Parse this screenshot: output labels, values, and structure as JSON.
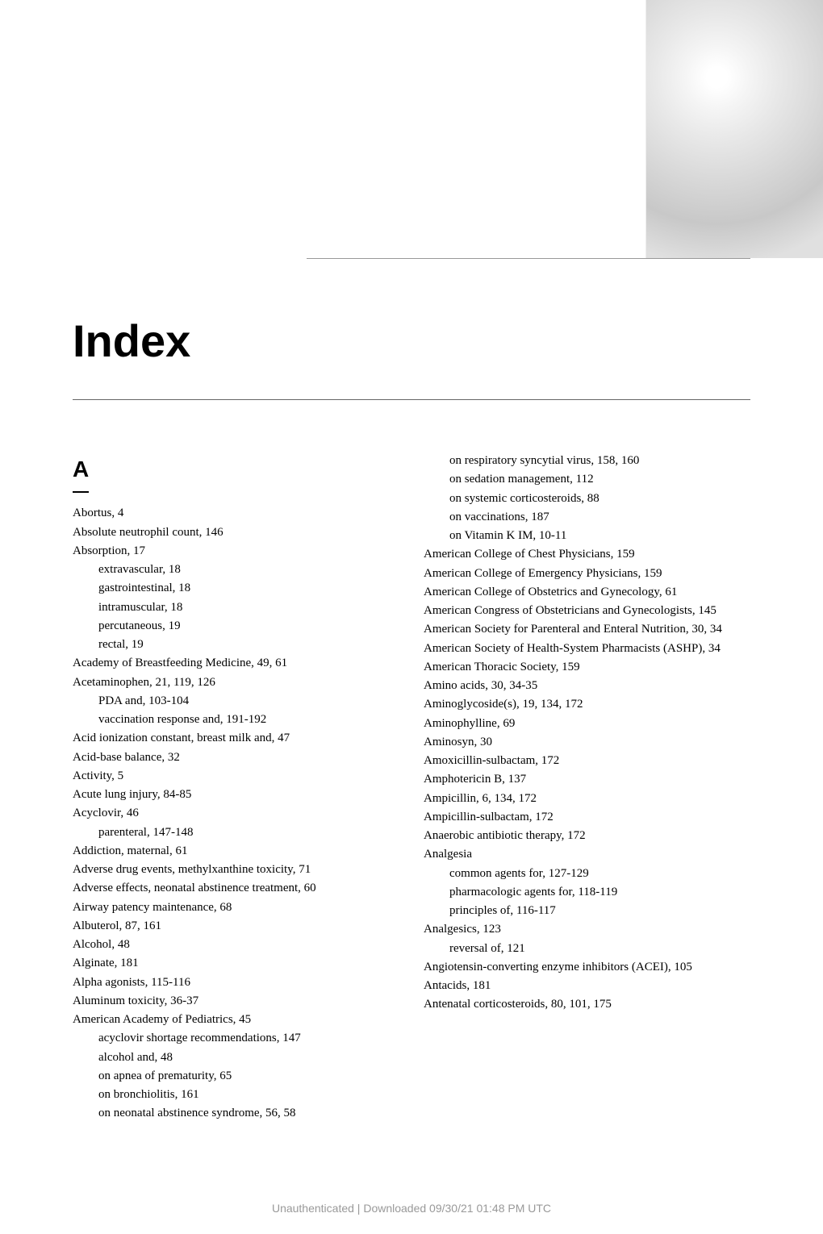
{
  "title": "Index",
  "section_letter": "A",
  "colors": {
    "text": "#000000",
    "rule": "#666666",
    "footer": "#999999",
    "background": "#ffffff"
  },
  "typography": {
    "title_font": "Arial",
    "title_size_pt": 42,
    "title_weight": 700,
    "body_font": "Georgia",
    "body_size_pt": 11,
    "letter_size_pt": 21
  },
  "columns": {
    "left": [
      {
        "t": "Abortus, 4",
        "i": 0
      },
      {
        "t": "Absolute neutrophil count, 146",
        "i": 0
      },
      {
        "t": "Absorption, 17",
        "i": 0
      },
      {
        "t": "extravascular, 18",
        "i": 1
      },
      {
        "t": "gastrointestinal, 18",
        "i": 1
      },
      {
        "t": "intramuscular, 18",
        "i": 1
      },
      {
        "t": "percutaneous, 19",
        "i": 1
      },
      {
        "t": "rectal, 19",
        "i": 1
      },
      {
        "t": "Academy of Breastfeeding Medicine, 49, 61",
        "i": 0
      },
      {
        "t": "Acetaminophen, 21, 119, 126",
        "i": 0
      },
      {
        "t": "PDA and, 103-104",
        "i": 1
      },
      {
        "t": "vaccination response and, 191-192",
        "i": 1
      },
      {
        "t": "Acid ionization constant, breast milk and, 47",
        "i": 0
      },
      {
        "t": "Acid-base balance, 32",
        "i": 0
      },
      {
        "t": "Activity, 5",
        "i": 0
      },
      {
        "t": "Acute lung injury, 84-85",
        "i": 0
      },
      {
        "t": "Acyclovir, 46",
        "i": 0
      },
      {
        "t": "parenteral, 147-148",
        "i": 1
      },
      {
        "t": "Addiction, maternal, 61",
        "i": 0
      },
      {
        "t": "Adverse drug events, methylxanthine toxicity, 71",
        "i": 0
      },
      {
        "t": "Adverse effects, neonatal abstinence treatment, 60",
        "i": 0
      },
      {
        "t": "Airway patency maintenance, 68",
        "i": 0
      },
      {
        "t": "Albuterol, 87, 161",
        "i": 0
      },
      {
        "t": "Alcohol, 48",
        "i": 0
      },
      {
        "t": "Alginate, 181",
        "i": 0
      },
      {
        "t": "Alpha agonists, 115-116",
        "i": 0
      },
      {
        "t": "Aluminum toxicity, 36-37",
        "i": 0
      },
      {
        "t": "American Academy of Pediatrics, 45",
        "i": 0
      },
      {
        "t": "acyclovir shortage recommendations, 147",
        "i": 1
      },
      {
        "t": "alcohol and, 48",
        "i": 1
      },
      {
        "t": "on apnea of prematurity, 65",
        "i": 1
      },
      {
        "t": "on bronchiolitis, 161",
        "i": 1
      },
      {
        "t": "on neonatal abstinence syndrome, 56, 58",
        "i": 1
      }
    ],
    "right": [
      {
        "t": "on respiratory syncytial virus, 158, 160",
        "i": 1
      },
      {
        "t": "on sedation management, 112",
        "i": 1
      },
      {
        "t": "on systemic corticosteroids, 88",
        "i": 1
      },
      {
        "t": "on vaccinations, 187",
        "i": 1
      },
      {
        "t": "on Vitamin K IM, 10-11",
        "i": 1
      },
      {
        "t": "American College of Chest Physicians, 159",
        "i": 0
      },
      {
        "t": "American College of Emergency Physicians, 159",
        "i": 0
      },
      {
        "t": "American College of Obstetrics and Gynecology, 61",
        "i": 0
      },
      {
        "t": "American Congress of Obstetricians and Gynecologists, 145",
        "i": 0
      },
      {
        "t": "American Society for Parenteral and Enteral Nutrition, 30, 34",
        "i": 0
      },
      {
        "t": "American Society of Health-System Pharmacists (ASHP), 34",
        "i": 0
      },
      {
        "t": "American Thoracic Society, 159",
        "i": 0
      },
      {
        "t": "Amino acids, 30, 34-35",
        "i": 0
      },
      {
        "t": "Aminoglycoside(s), 19, 134, 172",
        "i": 0
      },
      {
        "t": "Aminophylline, 69",
        "i": 0
      },
      {
        "t": "Aminosyn, 30",
        "i": 0
      },
      {
        "t": "Amoxicillin-sulbactam, 172",
        "i": 0
      },
      {
        "t": "Amphotericin B, 137",
        "i": 0
      },
      {
        "t": "Ampicillin, 6, 134, 172",
        "i": 0
      },
      {
        "t": "Ampicillin-sulbactam, 172",
        "i": 0
      },
      {
        "t": "Anaerobic antibiotic therapy, 172",
        "i": 0
      },
      {
        "t": "Analgesia",
        "i": 0
      },
      {
        "t": "common agents for, 127-129",
        "i": 1
      },
      {
        "t": "pharmacologic agents for, 118-119",
        "i": 1
      },
      {
        "t": "principles of, 116-117",
        "i": 1
      },
      {
        "t": "Analgesics, 123",
        "i": 0
      },
      {
        "t": "reversal of, 121",
        "i": 1
      },
      {
        "t": "Angiotensin-converting enzyme inhibitors (ACEI), 105",
        "i": 0
      },
      {
        "t": "Antacids, 181",
        "i": 0
      },
      {
        "t": "Antenatal corticosteroids, 80, 101, 175",
        "i": 0
      }
    ]
  },
  "footer": "Unauthenticated | Downloaded 09/30/21 01:48 PM UTC"
}
